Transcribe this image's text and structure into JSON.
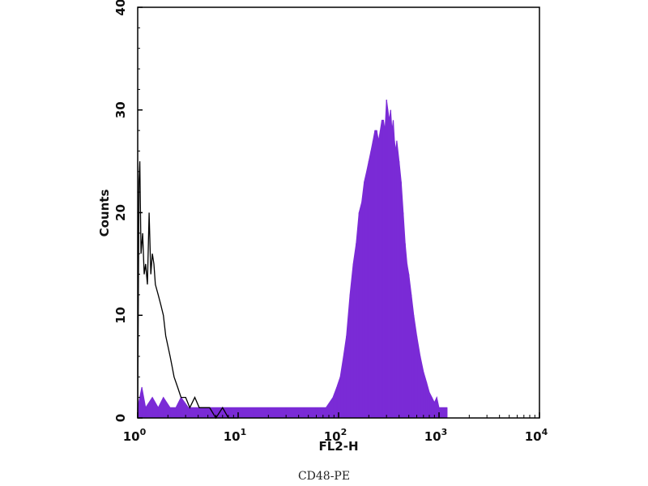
{
  "chart_data": {
    "type": "histogram",
    "xlabel": "FL2-H",
    "ylabel": "Counts",
    "x_scale": "log",
    "xlim": [
      1,
      10000
    ],
    "ylim": [
      0,
      40
    ],
    "x_ticks": [
      {
        "base": "10",
        "exp": "0"
      },
      {
        "base": "10",
        "exp": "1"
      },
      {
        "base": "10",
        "exp": "2"
      },
      {
        "base": "10",
        "exp": "3"
      },
      {
        "base": "10",
        "exp": "4"
      }
    ],
    "y_ticks": [
      "0",
      "10",
      "20",
      "30",
      "40"
    ],
    "grid": false,
    "series": [
      {
        "style": "filled",
        "color": "#7a2bd6",
        "points": [
          [
            1.0,
            1
          ],
          [
            1.1,
            3
          ],
          [
            1.2,
            1
          ],
          [
            1.4,
            2
          ],
          [
            1.6,
            1
          ],
          [
            1.8,
            2
          ],
          [
            2.1,
            1
          ],
          [
            2.4,
            1
          ],
          [
            2.7,
            2
          ],
          [
            3.2,
            1
          ],
          [
            3.9,
            1
          ],
          [
            4.7,
            1
          ],
          [
            6.0,
            1
          ],
          [
            8.5,
            1
          ],
          [
            11,
            1
          ],
          [
            14,
            1
          ],
          [
            20,
            1
          ],
          [
            30,
            1
          ],
          [
            45,
            1
          ],
          [
            60,
            1
          ],
          [
            75,
            1
          ],
          [
            88,
            2
          ],
          [
            96,
            3
          ],
          [
            104,
            4
          ],
          [
            112,
            6
          ],
          [
            120,
            8
          ],
          [
            130,
            12
          ],
          [
            140,
            15
          ],
          [
            150,
            17
          ],
          [
            160,
            20
          ],
          [
            170,
            21
          ],
          [
            180,
            23
          ],
          [
            190,
            24
          ],
          [
            200,
            25
          ],
          [
            210,
            26
          ],
          [
            220,
            27
          ],
          [
            230,
            28
          ],
          [
            240,
            28
          ],
          [
            250,
            27
          ],
          [
            260,
            28
          ],
          [
            270,
            29
          ],
          [
            280,
            29
          ],
          [
            290,
            28
          ],
          [
            300,
            31
          ],
          [
            310,
            30
          ],
          [
            320,
            29
          ],
          [
            330,
            30
          ],
          [
            340,
            28
          ],
          [
            350,
            29
          ],
          [
            360,
            27
          ],
          [
            370,
            26
          ],
          [
            380,
            27
          ],
          [
            400,
            25
          ],
          [
            420,
            23
          ],
          [
            440,
            20
          ],
          [
            460,
            17
          ],
          [
            480,
            15
          ],
          [
            500,
            14
          ],
          [
            530,
            12
          ],
          [
            560,
            10
          ],
          [
            600,
            8
          ],
          [
            650,
            6
          ],
          [
            700,
            4.5
          ],
          [
            750,
            3.5
          ],
          [
            800,
            2.5
          ],
          [
            850,
            2
          ],
          [
            900,
            1.5
          ],
          [
            950,
            2
          ],
          [
            1000,
            1
          ],
          [
            1100,
            1
          ],
          [
            1200,
            1
          ]
        ]
      },
      {
        "style": "outline",
        "color": "#000000",
        "points": [
          [
            1.0,
            0
          ],
          [
            1.03,
            23
          ],
          [
            1.05,
            25
          ],
          [
            1.08,
            16
          ],
          [
            1.12,
            18
          ],
          [
            1.16,
            14
          ],
          [
            1.2,
            15
          ],
          [
            1.25,
            13
          ],
          [
            1.3,
            20
          ],
          [
            1.35,
            14
          ],
          [
            1.4,
            16
          ],
          [
            1.45,
            15
          ],
          [
            1.5,
            13
          ],
          [
            1.6,
            12
          ],
          [
            1.7,
            11
          ],
          [
            1.8,
            10
          ],
          [
            1.9,
            8
          ],
          [
            2.0,
            7
          ],
          [
            2.1,
            6
          ],
          [
            2.2,
            5
          ],
          [
            2.3,
            4
          ],
          [
            2.5,
            3
          ],
          [
            2.7,
            2
          ],
          [
            3.0,
            2
          ],
          [
            3.3,
            1
          ],
          [
            3.7,
            2
          ],
          [
            4.1,
            1
          ],
          [
            4.6,
            1
          ],
          [
            5.2,
            1
          ],
          [
            6.0,
            0
          ],
          [
            7.0,
            1
          ],
          [
            8.0,
            0
          ],
          [
            10,
            0
          ]
        ]
      }
    ]
  },
  "caption": "CD48-PE"
}
